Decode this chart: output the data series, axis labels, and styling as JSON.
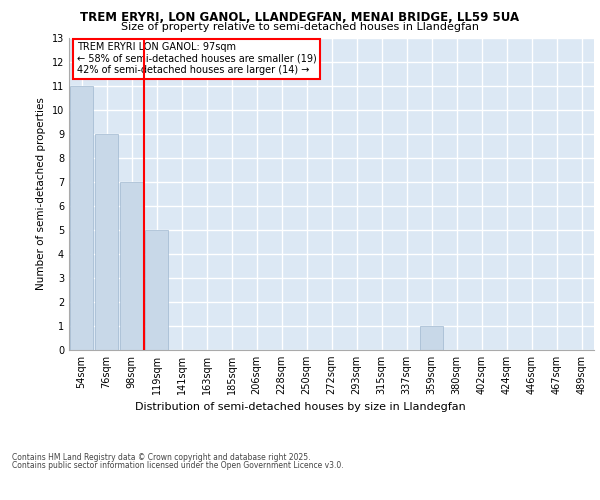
{
  "title1": "TREM ERYRI, LON GANOL, LLANDEGFAN, MENAI BRIDGE, LL59 5UA",
  "title2": "Size of property relative to semi-detached houses in Llandegfan",
  "xlabel": "Distribution of semi-detached houses by size in Llandegfan",
  "ylabel": "Number of semi-detached properties",
  "categories": [
    "54sqm",
    "76sqm",
    "98sqm",
    "119sqm",
    "141sqm",
    "163sqm",
    "185sqm",
    "206sqm",
    "228sqm",
    "250sqm",
    "272sqm",
    "293sqm",
    "315sqm",
    "337sqm",
    "359sqm",
    "380sqm",
    "402sqm",
    "424sqm",
    "446sqm",
    "467sqm",
    "489sqm"
  ],
  "values": [
    11,
    9,
    7,
    5,
    0,
    0,
    0,
    0,
    0,
    0,
    0,
    0,
    0,
    0,
    1,
    0,
    0,
    0,
    0,
    0,
    0
  ],
  "bar_color": "#c8d8e8",
  "bar_edge_color": "#a0b8d0",
  "red_line_x": 2.5,
  "annotation_title": "TREM ERYRI LON GANOL: 97sqm",
  "annotation_line1": "← 58% of semi-detached houses are smaller (19)",
  "annotation_line2": "42% of semi-detached houses are larger (14) →",
  "ylim": [
    0,
    13
  ],
  "yticks": [
    0,
    1,
    2,
    3,
    4,
    5,
    6,
    7,
    8,
    9,
    10,
    11,
    12,
    13
  ],
  "footer1": "Contains HM Land Registry data © Crown copyright and database right 2025.",
  "footer2": "Contains public sector information licensed under the Open Government Licence v3.0.",
  "background_color": "#dce8f4",
  "grid_color": "#ffffff",
  "title1_fontsize": 8.5,
  "title2_fontsize": 8.0,
  "ylabel_fontsize": 7.5,
  "xlabel_fontsize": 8.0,
  "tick_fontsize": 7.0,
  "annotation_fontsize": 7.0,
  "footer_fontsize": 5.5
}
